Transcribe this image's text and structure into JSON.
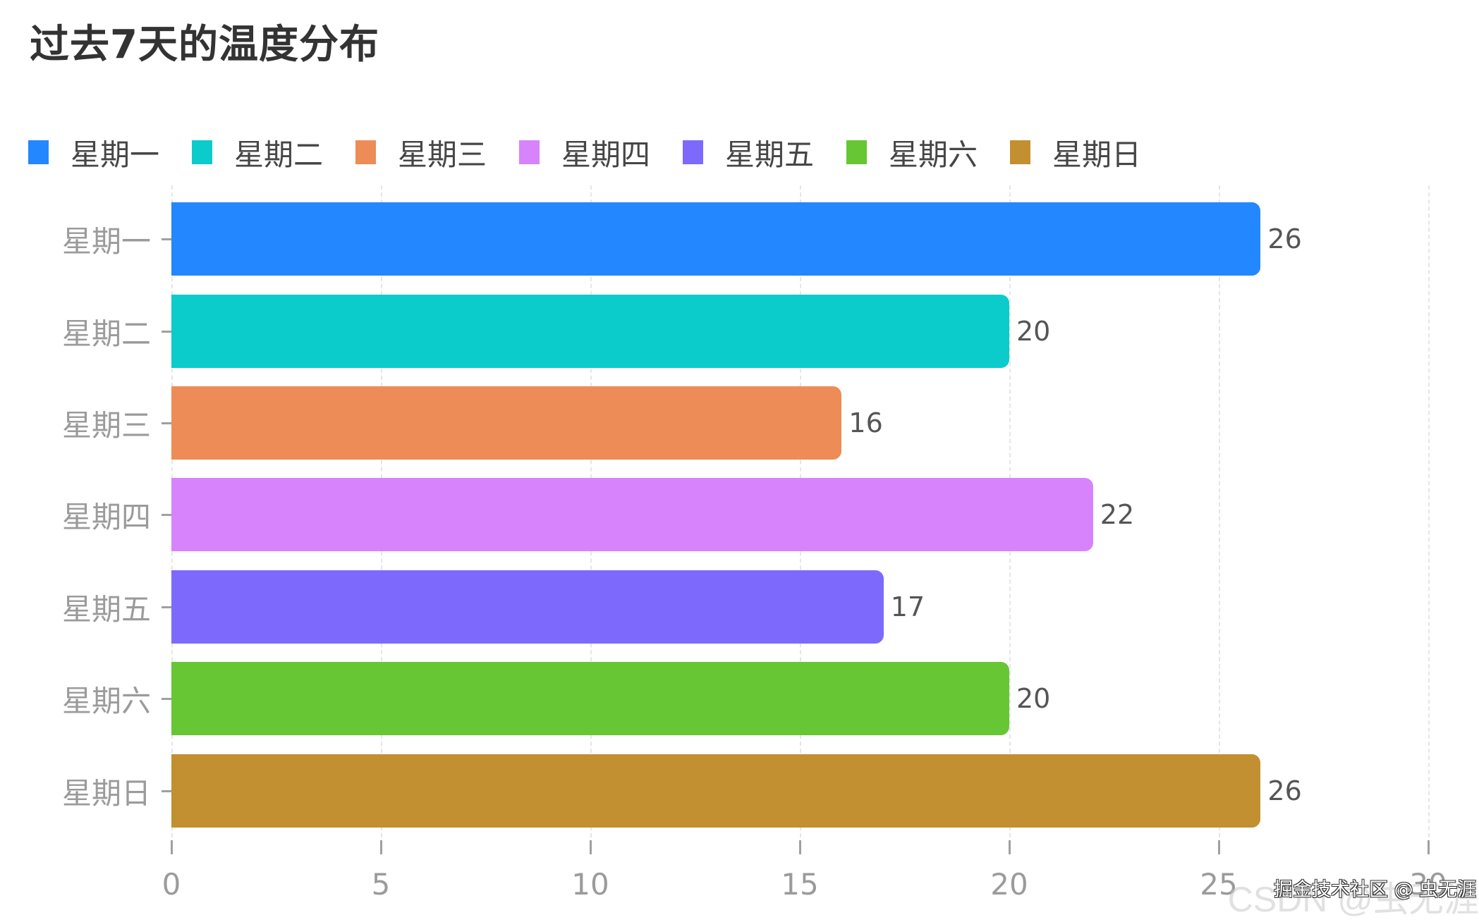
{
  "chart_data": {
    "type": "bar",
    "orientation": "horizontal",
    "title": "过去7天的温度分布",
    "categories": [
      "星期一",
      "星期二",
      "星期三",
      "星期四",
      "星期五",
      "星期六",
      "星期日"
    ],
    "values": [
      26,
      20,
      16,
      22,
      17,
      20,
      26
    ],
    "colors": [
      "#2387ff",
      "#0bcbcb",
      "#ed8c56",
      "#d783fc",
      "#7d6afd",
      "#67c634",
      "#c29030"
    ],
    "xlabel": "",
    "ylabel": "",
    "xlim": [
      0,
      30
    ],
    "x_ticks": [
      "0",
      "5",
      "10",
      "15",
      "20",
      "25",
      "30"
    ],
    "grid": {
      "vertical": true,
      "style": "dashed"
    },
    "legend": {
      "position": "top-left",
      "entries": [
        "星期一",
        "星期二",
        "星期三",
        "星期四",
        "星期五",
        "星期六",
        "星期日"
      ]
    },
    "data_labels": true
  },
  "header": {
    "title": "过去7天的温度分布"
  },
  "legend": {
    "items": [
      {
        "label": "星期一",
        "color": "#2387ff"
      },
      {
        "label": "星期二",
        "color": "#0bcbcb"
      },
      {
        "label": "星期三",
        "color": "#ed8c56"
      },
      {
        "label": "星期四",
        "color": "#d783fc"
      },
      {
        "label": "星期五",
        "color": "#7d6afd"
      },
      {
        "label": "星期六",
        "color": "#67c634"
      },
      {
        "label": "星期日",
        "color": "#c29030"
      }
    ]
  },
  "bars": [
    {
      "category": "星期一",
      "value": "26"
    },
    {
      "category": "星期二",
      "value": "20"
    },
    {
      "category": "星期三",
      "value": "16"
    },
    {
      "category": "星期四",
      "value": "22"
    },
    {
      "category": "星期五",
      "value": "17"
    },
    {
      "category": "星期六",
      "value": "20"
    },
    {
      "category": "星期日",
      "value": "26"
    }
  ],
  "x_axis": {
    "ticks": [
      "0",
      "5",
      "10",
      "15",
      "20",
      "25",
      "30"
    ]
  },
  "watermark": {
    "front": "掘金技术社区 @ 虫无涯",
    "back": "CSDN @虫无涯"
  }
}
